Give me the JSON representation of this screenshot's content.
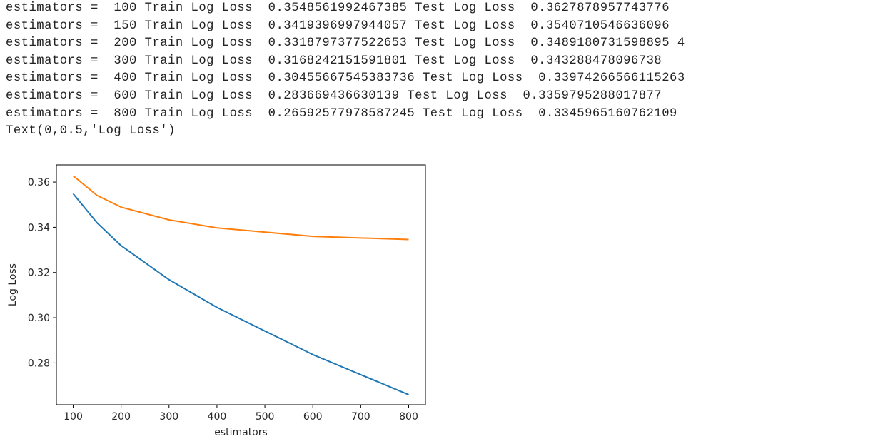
{
  "console": {
    "lines": [
      "estimators =  100 Train Log Loss  0.3548561992467385 Test Log Loss  0.3627878957743776",
      "estimators =  150 Train Log Loss  0.3419396997944057 Test Log Loss  0.3540710546636096",
      "estimators =  200 Train Log Loss  0.3318797377522653 Test Log Loss  0.3489180731598895 4",
      "estimators =  300 Train Log Loss  0.3168242151591801 Test Log Loss  0.343288478096738",
      "estimators =  400 Train Log Loss  0.30455667545383736 Test Log Loss  0.33974266566115263",
      "estimators =  600 Train Log Loss  0.283669436630139 Test Log Loss  0.3359795288017877",
      "estimators =  800 Train Log Loss  0.26592577978587245 Test Log Loss  0.3345965160762109",
      "Text(0,0.5,'Log Loss')"
    ]
  },
  "chart_data": {
    "type": "line",
    "x": [
      100,
      150,
      200,
      300,
      400,
      600,
      800
    ],
    "series": [
      {
        "values": [
          0.3548561992467385,
          0.3419396997944057,
          0.3318797377522653,
          0.3168242151591801,
          0.30455667545383736,
          0.283669436630139,
          0.26592577978587245
        ],
        "color": "#1f77b4"
      },
      {
        "values": [
          0.3627878957743776,
          0.3540710546636096,
          0.34891807315988954,
          0.343288478096738,
          0.33974266566115263,
          0.3359795288017877,
          0.3345965160762109
        ],
        "color": "#ff7f0e"
      }
    ],
    "xlabel": "estimators",
    "ylabel": "Log Loss",
    "xlim": [
      65,
      835
    ],
    "ylim": [
      0.2615,
      0.3676
    ],
    "xticks": [
      100,
      200,
      300,
      400,
      500,
      600,
      700,
      800
    ],
    "xtick_labels": [
      "100",
      "200",
      "300",
      "400",
      "500",
      "600",
      "700",
      "800"
    ],
    "yticks": [
      0.28,
      0.3,
      0.32,
      0.34,
      0.36
    ],
    "ytick_labels": [
      "0.28",
      "0.30",
      "0.32",
      "0.34",
      "0.36"
    ],
    "grid": false
  }
}
